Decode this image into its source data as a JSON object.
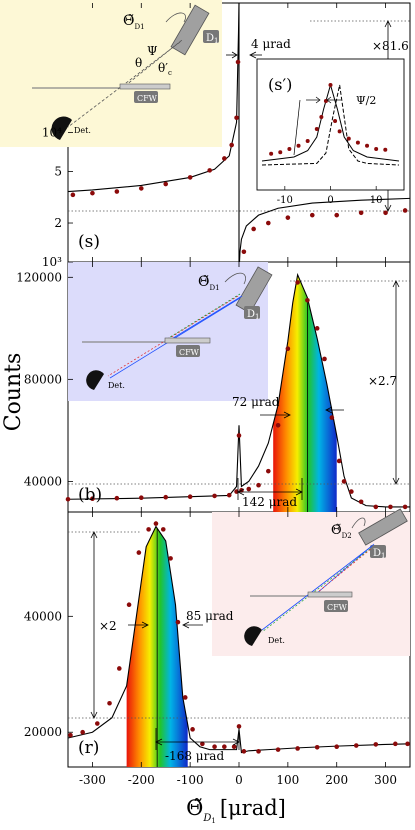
{
  "figure": {
    "ylabel": "Counts",
    "xlabel": "Θ̃",
    "xlabel_sub": "D",
    "xlabel_sub2": "1",
    "xlabel_unit": "[μrad]"
  },
  "chart_data": [
    {
      "type": "line",
      "panel_label": "(s)",
      "yscale": "log",
      "xlim": [
        -350,
        350
      ],
      "ylim": [
        1000,
        100000
      ],
      "x_ticks": [
        -300,
        -200,
        -100,
        0,
        100,
        200,
        300
      ],
      "y_tick_labels": [
        "10³",
        "2",
        "5",
        "10⁴"
      ],
      "annotations": {
        "width": "4 μrad",
        "factor": "×81.6"
      },
      "series": [
        {
          "style": "solid",
          "x": [
            -350,
            -300,
            -200,
            -100,
            -50,
            -20,
            -5,
            -1,
            0,
            1,
            2,
            5,
            15,
            40,
            80,
            150,
            250,
            350
          ],
          "y": [
            3500,
            3600,
            3900,
            4500,
            5200,
            6600,
            12000,
            60000,
            200000,
            1000,
            1200,
            1500,
            1900,
            2300,
            2600,
            2850,
            3000,
            3100
          ]
        },
        {
          "style": "points",
          "x": [
            -340,
            -300,
            -250,
            -200,
            -150,
            -100,
            -60,
            -30,
            -15,
            -5,
            -2,
            10,
            30,
            60,
            100,
            150,
            200,
            250,
            300,
            340
          ],
          "y": [
            3300,
            3400,
            3500,
            3700,
            4000,
            4500,
            5100,
            6300,
            8000,
            13000,
            35000,
            1200,
            1800,
            2000,
            2200,
            2300,
            2300,
            2400,
            2400,
            2500
          ]
        }
      ],
      "inset": {
        "label": "(s′)",
        "annotation": "Ψ/2",
        "x_ticks": [
          -10,
          0,
          10
        ],
        "xlim": [
          -15,
          15
        ],
        "series": [
          {
            "style": "solid",
            "x": [
              -15,
              -8,
              -5,
              -3,
              -1.5,
              0,
              1.5,
              3,
              5,
              8,
              15
            ],
            "y": [
              0.05,
              0.1,
              0.18,
              0.35,
              0.7,
              1.0,
              0.7,
              0.35,
              0.18,
              0.1,
              0.05
            ]
          },
          {
            "style": "dashed",
            "x": [
              -15,
              -3,
              -1,
              0.5,
              2,
              3,
              4,
              6,
              8,
              15
            ],
            "y": [
              0.0,
              0.02,
              0.15,
              0.6,
              1.0,
              0.6,
              0.2,
              0.05,
              0.02,
              0.0
            ]
          },
          {
            "style": "points",
            "x": [
              -13,
              -11,
              -9,
              -7,
              -5,
              -3,
              -2,
              -1,
              0,
              1,
              2,
              4,
              6,
              8,
              10,
              12
            ],
            "y": [
              0.14,
              0.16,
              0.2,
              0.24,
              0.3,
              0.45,
              0.6,
              0.8,
              1.0,
              0.55,
              0.42,
              0.33,
              0.28,
              0.24,
              0.2,
              0.19
            ]
          }
        ]
      },
      "schematic": {
        "theta_label": "Θ̃",
        "theta_sub": "D1",
        "crystal_label": "D",
        "crystal_sub": "1",
        "cfw_label": "CFW",
        "det_label": "Det.",
        "psi": "Ψ",
        "theta": "θ",
        "theta_prime": "θ′",
        "theta_prime_sub": "c",
        "bg": "#fdf8d6"
      }
    },
    {
      "type": "line",
      "panel_label": "(b)",
      "xlim": [
        -350,
        350
      ],
      "ylim": [
        28000,
        126000
      ],
      "y_ticks": [
        40000,
        80000,
        120000
      ],
      "annotations": {
        "width": "72 μrad",
        "shift": "142 μrad",
        "factor": "×2.7"
      },
      "series": [
        {
          "style": "solid",
          "x": [
            -350,
            -200,
            -100,
            -20,
            -5,
            0,
            5,
            20,
            40,
            60,
            80,
            100,
            110,
            120,
            140,
            160,
            180,
            200,
            215,
            230,
            260,
            300,
            350
          ],
          "y": [
            33000,
            33400,
            34000,
            34500,
            38000,
            62000,
            38000,
            40000,
            46000,
            55000,
            70000,
            95000,
            110000,
            121000,
            112000,
            96000,
            78000,
            58000,
            42000,
            33500,
            30500,
            30000,
            30000
          ]
        },
        {
          "style": "points",
          "x": [
            -350,
            -300,
            -250,
            -200,
            -150,
            -100,
            -50,
            -20,
            -5,
            0,
            5,
            20,
            40,
            60,
            80,
            100,
            120,
            140,
            160,
            175,
            190,
            205,
            215,
            230,
            250,
            280,
            310,
            340
          ],
          "y": [
            33000,
            33200,
            33400,
            33600,
            33800,
            34000,
            34300,
            34600,
            36000,
            58000,
            36500,
            37000,
            38500,
            44000,
            62000,
            92000,
            118000,
            111000,
            100000,
            88000,
            65000,
            48000,
            40000,
            36000,
            32000,
            30000,
            30000,
            30000
          ]
        }
      ],
      "spectrum_fill": {
        "x_start": 70,
        "x_end": 200
      },
      "schematic": {
        "theta_label": "Θ̃",
        "theta_sub": "D1",
        "crystal_label": "D",
        "crystal_sub": "1",
        "cfw_label": "CFW",
        "det_label": "Det.",
        "bg": "#dcdcfb"
      }
    },
    {
      "type": "line",
      "panel_label": "(r)",
      "xlim": [
        -350,
        350
      ],
      "ylim": [
        14000,
        58000
      ],
      "x_ticks": [
        -300,
        -200,
        -100,
        0,
        100,
        200,
        300
      ],
      "y_ticks": [
        20000,
        40000
      ],
      "annotations": {
        "width": "85 μrad",
        "shift": "-168 μrad",
        "factor": "×2"
      },
      "series": [
        {
          "style": "solid",
          "x": [
            -350,
            -300,
            -260,
            -230,
            -210,
            -190,
            -170,
            -150,
            -130,
            -115,
            -100,
            -80,
            -60,
            -30,
            -5,
            0,
            5,
            20,
            60,
            120,
            200,
            300,
            350
          ],
          "y": [
            19000,
            20000,
            22500,
            28000,
            40000,
            52000,
            55500,
            53000,
            42000,
            26000,
            19000,
            17500,
            17000,
            17000,
            17000,
            20500,
            16500,
            16800,
            17000,
            17300,
            17600,
            17900,
            18000
          ]
        },
        {
          "style": "points",
          "x": [
            -345,
            -320,
            -290,
            -265,
            -245,
            -225,
            -205,
            -185,
            -170,
            -155,
            -140,
            -125,
            -110,
            -95,
            -75,
            -50,
            -30,
            -10,
            0,
            10,
            40,
            80,
            120,
            160,
            200,
            240,
            280,
            320,
            345
          ],
          "y": [
            19500,
            20000,
            21500,
            25000,
            31000,
            42000,
            51000,
            55000,
            56000,
            55000,
            50000,
            39000,
            26000,
            20500,
            18000,
            17500,
            17500,
            17500,
            21000,
            16700,
            16700,
            17000,
            17200,
            17400,
            17500,
            17700,
            17900,
            18000,
            18000
          ]
        }
      ],
      "spectrum_fill": {
        "x_start": -230,
        "x_end": -105
      },
      "schematic": {
        "theta_label": "Θ̃",
        "theta_sub": "D2",
        "crystal_label": "D",
        "crystal_sub": "1",
        "cfw_label": "CFW",
        "det_label": "Det.",
        "bg": "#fcecec"
      }
    }
  ]
}
